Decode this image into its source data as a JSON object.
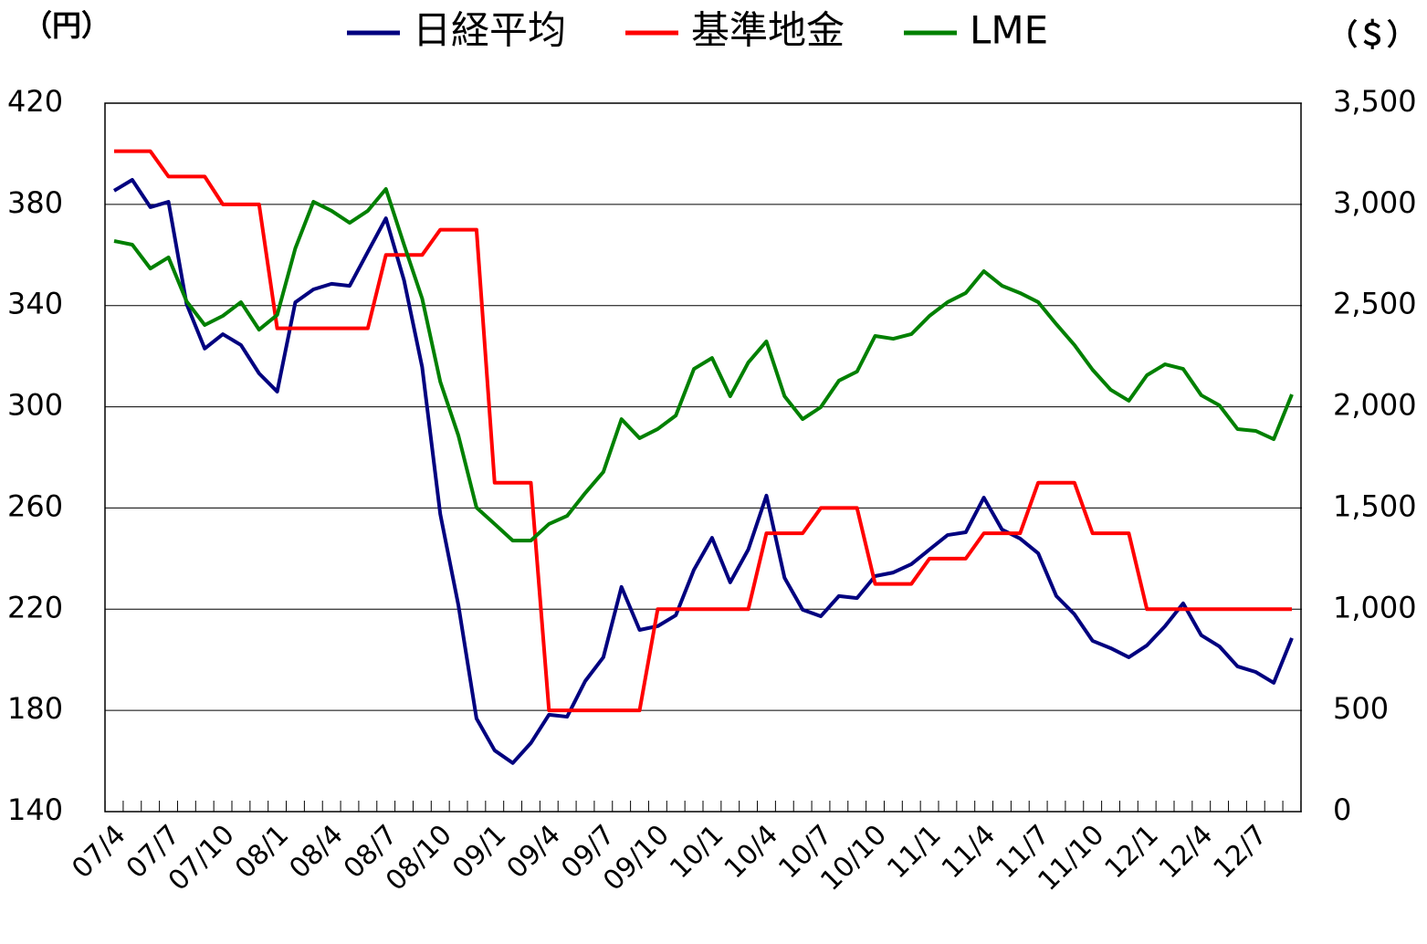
{
  "chart_data": {
    "type": "line",
    "y_unit_label": "（円）",
    "y2_unit_label": "（＄）",
    "categories": [
      "07/4",
      null,
      null,
      "07/7",
      null,
      null,
      "07/10",
      null,
      null,
      "08/1",
      null,
      null,
      "08/4",
      null,
      null,
      "08/7",
      null,
      null,
      "08/10",
      null,
      null,
      "09/1",
      null,
      null,
      "09/4",
      null,
      null,
      "09/7",
      null,
      null,
      "09/10",
      null,
      null,
      "10/1",
      null,
      null,
      "10/4",
      null,
      null,
      "10/7",
      null,
      null,
      "10/10",
      null,
      null,
      "11/1",
      null,
      null,
      "11/4",
      null,
      null,
      "11/7",
      null,
      null,
      "11/10",
      null,
      null,
      "12/1",
      null,
      null,
      "12/4",
      null,
      null,
      "12/7",
      null,
      null
    ],
    "series": [
      {
        "name": "日経平均",
        "color": "#00007f",
        "values": [
          385.4,
          389.7,
          378.9,
          381,
          340.6,
          323,
          328.7,
          324.4,
          313.2,
          306,
          341.3,
          346.4,
          348.6,
          347.8,
          361.2,
          374.5,
          350,
          315.7,
          257.6,
          221.6,
          176.8,
          164.2,
          159.2,
          167.1,
          178.3,
          177.5,
          191.6,
          201,
          228.8,
          211.8,
          213.3,
          217.6,
          235.6,
          248.2,
          230.6,
          243.6,
          264.9,
          232.4,
          219.8,
          217.2,
          225.2,
          224.4,
          233.1,
          234.5,
          237.8,
          243.6,
          249.3,
          250.4,
          264.1,
          251.5,
          247.9,
          242.1,
          225.2,
          218,
          207.5,
          204.6,
          201,
          205.7,
          213.3,
          222.3,
          209.7,
          205.3,
          197.4,
          195.2,
          190.9,
          208.6
        ]
      },
      {
        "name": "基準地金",
        "color": "#ff0000",
        "values": [
          401,
          401,
          401,
          391,
          391,
          391,
          380,
          380,
          380,
          331,
          331,
          331,
          331,
          331,
          331,
          360,
          360,
          360,
          370,
          370,
          370,
          270,
          270,
          270,
          180,
          180,
          180,
          180,
          180,
          180,
          220,
          220,
          220,
          220,
          220,
          220,
          250,
          250,
          250,
          260,
          260,
          260,
          230,
          230,
          230,
          240,
          240,
          240,
          250,
          250,
          250,
          270,
          270,
          270,
          250,
          250,
          250,
          220,
          220,
          220,
          220,
          220,
          220,
          220,
          220,
          220
        ]
      },
      {
        "name": "LME",
        "color": "#008000",
        "axis": "y2",
        "values": [
          2819,
          2801,
          2683,
          2738,
          2521,
          2404,
          2449,
          2517,
          2381,
          2454,
          2783,
          3013,
          2968,
          2909,
          2968,
          3076,
          2801,
          2535,
          2124,
          1858,
          1502,
          1421,
          1339,
          1339,
          1421,
          1461,
          1574,
          1678,
          1939,
          1845,
          1890,
          1957,
          2187,
          2241,
          2052,
          2219,
          2323,
          2052,
          1939,
          1998,
          2129,
          2174,
          2350,
          2336,
          2359,
          2449,
          2517,
          2562,
          2670,
          2598,
          2562,
          2517,
          2408,
          2305,
          2183,
          2084,
          2030,
          2156,
          2210,
          2187,
          2057,
          2007,
          1890,
          1881,
          1840,
          2061
        ]
      }
    ],
    "ylim": [
      140,
      420
    ],
    "yticks": [
      140,
      180,
      220,
      260,
      300,
      340,
      380,
      420
    ],
    "y2lim": [
      0,
      3500
    ],
    "y2ticks": [
      0,
      500,
      {
        "value": 1000,
        "label": "1,000"
      },
      {
        "value": 1500,
        "label": "1,500"
      },
      {
        "value": 2000,
        "label": "2,000"
      },
      {
        "value": 2500,
        "label": "2,500"
      },
      {
        "value": 3000,
        "label": "3,000"
      },
      {
        "value": 3500,
        "label": "3,500"
      }
    ],
    "grid": true,
    "legend": "top"
  }
}
